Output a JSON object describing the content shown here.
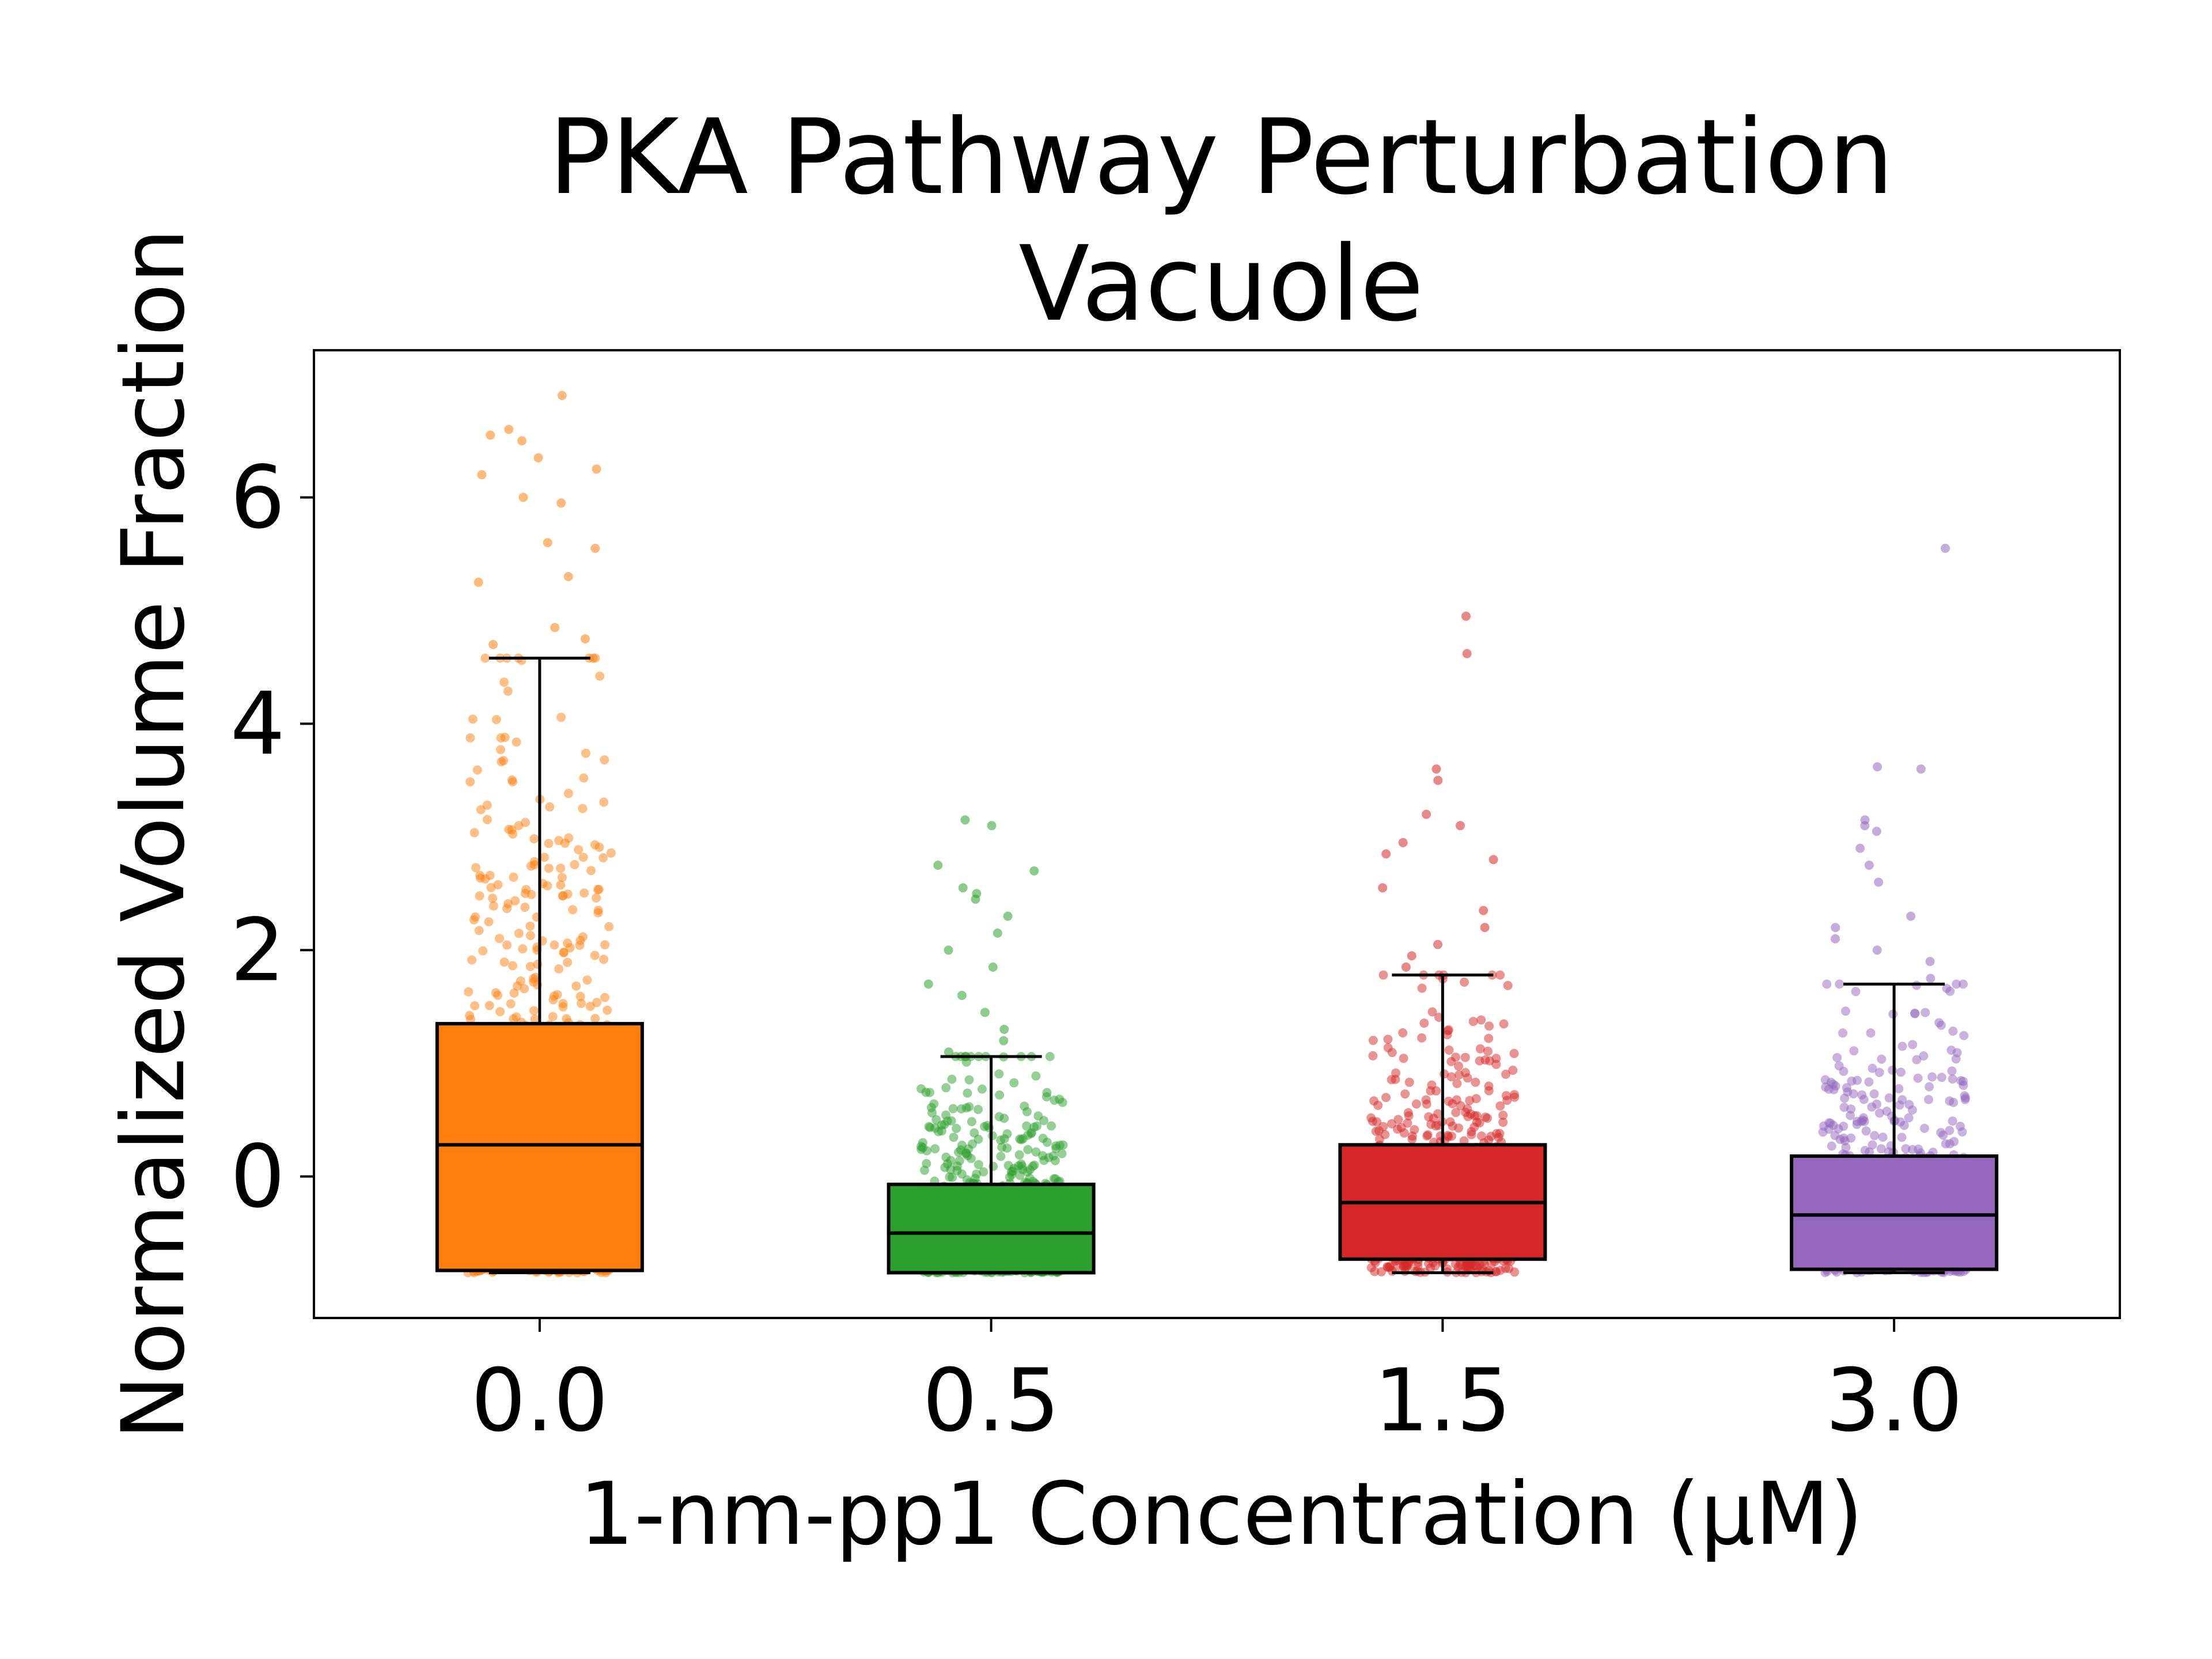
{
  "chart_data": {
    "type": "box",
    "title": [
      "PKA Pathway Perturbation",
      "Vacuole"
    ],
    "xlabel": "1-nm-pp1 Concentration (μM)",
    "ylabel": "Normalized Volume Fraction",
    "categories": [
      "0.0",
      "0.5",
      "1.5",
      "3.0"
    ],
    "ylim": [
      -1.25,
      7.3
    ],
    "yticks": [
      0,
      2,
      4,
      6
    ],
    "colors": [
      "#ff7f0e",
      "#2ca02c",
      "#d62728",
      "#9467bd"
    ],
    "boxes": [
      {
        "category": "0.0",
        "whisker_low": -0.85,
        "q1": -0.83,
        "median": 0.28,
        "q3": 1.35,
        "whisker_high": 4.58,
        "outliers": [
          4.7,
          4.75,
          4.85,
          5.25,
          5.3,
          5.55,
          5.6,
          5.95,
          6.0,
          6.2,
          6.25,
          6.35,
          6.5,
          6.55,
          6.6,
          6.9
        ]
      },
      {
        "category": "0.5",
        "whisker_low": -0.85,
        "q1": -0.85,
        "median": -0.5,
        "q3": -0.07,
        "whisker_high": 1.06,
        "outliers": [
          1.1,
          1.2,
          1.3,
          1.45,
          1.6,
          1.7,
          1.85,
          2.0,
          2.15,
          2.3,
          2.45,
          2.5,
          2.55,
          2.7,
          2.75,
          3.1,
          3.15
        ]
      },
      {
        "category": "1.5",
        "whisker_low": -0.85,
        "q1": -0.73,
        "median": -0.23,
        "q3": 0.28,
        "whisker_high": 1.78,
        "outliers": [
          1.85,
          1.95,
          2.05,
          2.2,
          2.35,
          2.55,
          2.8,
          2.85,
          2.95,
          3.1,
          3.2,
          3.5,
          3.6,
          4.62,
          4.95
        ]
      },
      {
        "category": "3.0",
        "whisker_low": -0.85,
        "q1": -0.82,
        "median": -0.34,
        "q3": 0.18,
        "whisker_high": 1.7,
        "outliers": [
          1.75,
          1.9,
          2.0,
          2.1,
          2.2,
          2.3,
          2.6,
          2.75,
          2.9,
          3.05,
          3.1,
          3.15,
          3.6,
          3.62,
          5.55
        ]
      }
    ]
  }
}
